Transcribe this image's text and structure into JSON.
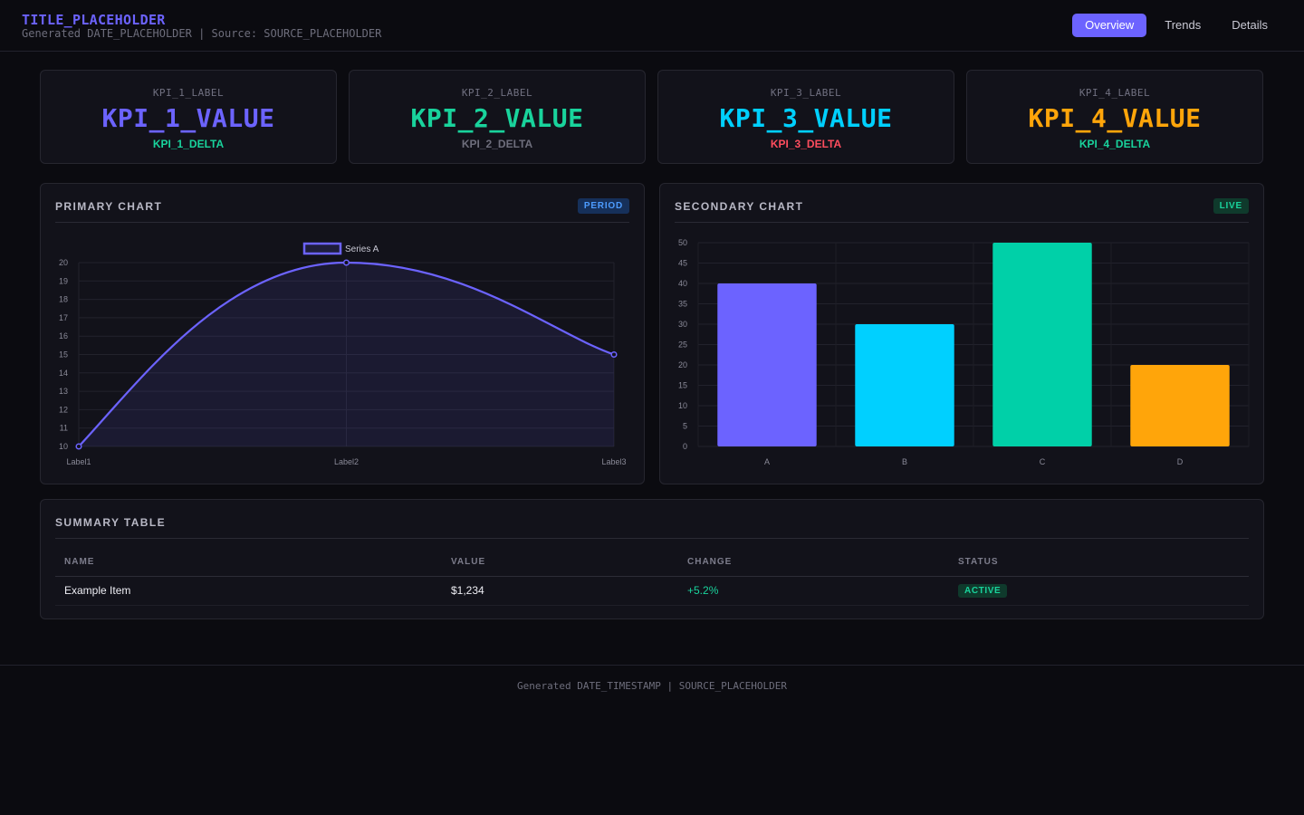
{
  "header": {
    "title": "TITLE_PLACEHOLDER",
    "subtitle": "Generated DATE_PLACEHOLDER | Source: SOURCE_PLACEHOLDER",
    "nav": [
      {
        "label": "Overview",
        "active": true
      },
      {
        "label": "Trends",
        "active": false
      },
      {
        "label": "Details",
        "active": false
      }
    ]
  },
  "kpis": [
    {
      "label": "KPI_1_LABEL",
      "value": "KPI_1_VALUE",
      "delta": "KPI_1_DELTA",
      "value_color": "#6c63ff",
      "delta_color": "#19d39c"
    },
    {
      "label": "KPI_2_LABEL",
      "value": "KPI_2_VALUE",
      "delta": "KPI_2_DELTA",
      "value_color": "#19d39c",
      "delta_color": "#6e6e7c"
    },
    {
      "label": "KPI_3_LABEL",
      "value": "KPI_3_VALUE",
      "delta": "KPI_3_DELTA",
      "value_color": "#00d0ff",
      "delta_color": "#ff4d5e"
    },
    {
      "label": "KPI_4_LABEL",
      "value": "KPI_4_VALUE",
      "delta": "KPI_4_DELTA",
      "value_color": "#ffa50a",
      "delta_color": "#19d39c"
    }
  ],
  "primary_panel": {
    "title": "PRIMARY CHART",
    "badge": "PERIOD"
  },
  "secondary_panel": {
    "title": "SECONDARY CHART",
    "badge": "LIVE"
  },
  "table_panel": {
    "title": "SUMMARY TABLE",
    "columns": [
      "NAME",
      "VALUE",
      "CHANGE",
      "STATUS"
    ],
    "rows": [
      {
        "name": "Example Item",
        "value": "$1,234",
        "change": "+5.2%",
        "status": "ACTIVE"
      }
    ]
  },
  "footer": {
    "text": "Generated DATE_TIMESTAMP | SOURCE_PLACEHOLDER"
  },
  "colors": {
    "accent": "#6c63ff",
    "green": "#19d39c",
    "cyan": "#00d0ff",
    "orange": "#ffa50a",
    "red": "#ff4d5e"
  },
  "chart_data": [
    {
      "type": "line",
      "categories": [
        "Label1",
        "Label2",
        "Label3"
      ],
      "series": [
        {
          "name": "Series A",
          "values": [
            10,
            20,
            15
          ],
          "color": "#6c63ff"
        }
      ],
      "ylim": [
        10,
        20
      ],
      "yticks": [
        10,
        11,
        12,
        13,
        14,
        15,
        16,
        17,
        18,
        19,
        20
      ],
      "legend": "top-center",
      "grid": true,
      "fill": true
    },
    {
      "type": "bar",
      "categories": [
        "A",
        "B",
        "C",
        "D"
      ],
      "values": [
        40,
        30,
        50,
        20
      ],
      "colors": [
        "#6c63ff",
        "#00d0ff",
        "#00d0a8",
        "#ffa50a"
      ],
      "ylim": [
        0,
        50
      ],
      "yticks": [
        0,
        5,
        10,
        15,
        20,
        25,
        30,
        35,
        40,
        45,
        50
      ],
      "grid": true
    }
  ]
}
